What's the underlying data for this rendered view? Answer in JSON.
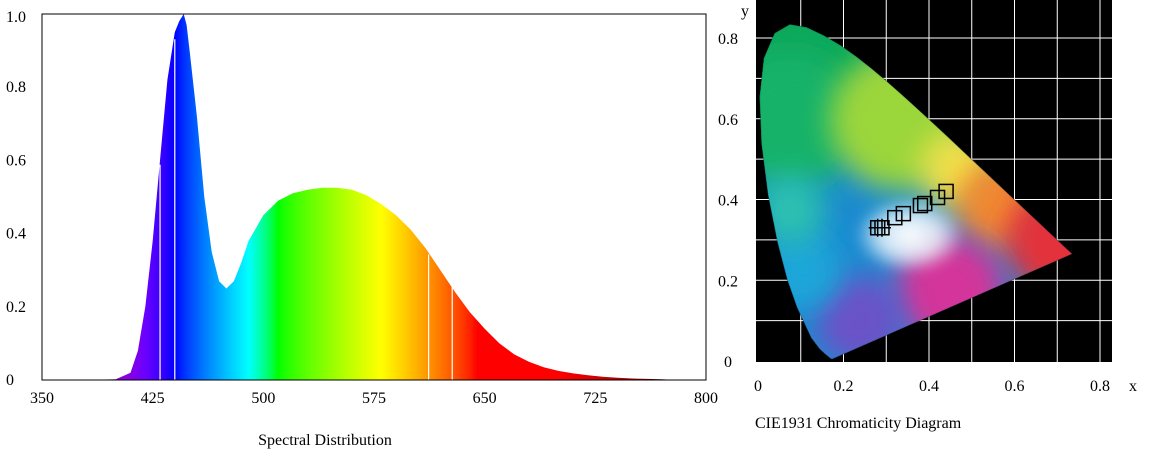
{
  "colors": {
    "background": "#ffffff",
    "cie_background": "#000000",
    "cie_grid": "#ffffff",
    "frame": "#000000"
  },
  "chart_data": [
    {
      "type": "area",
      "title": "Spectral Distribution",
      "xlabel": "",
      "ylabel": "",
      "xlim": [
        350,
        800
      ],
      "ylim": [
        0,
        1.0
      ],
      "x_ticks": [
        "350",
        "425",
        "500",
        "575",
        "650",
        "725",
        "800"
      ],
      "y_ticks": [
        "0",
        "0.2",
        "0.4",
        "0.6",
        "0.8",
        "1.0"
      ],
      "grid": false,
      "fill": "wavelength-colored spectrum",
      "x": [
        380,
        400,
        410,
        415,
        420,
        425,
        430,
        435,
        440,
        443,
        446,
        448,
        450,
        455,
        460,
        465,
        470,
        475,
        480,
        485,
        490,
        500,
        510,
        520,
        530,
        540,
        550,
        560,
        570,
        580,
        590,
        600,
        610,
        620,
        630,
        640,
        650,
        660,
        670,
        680,
        690,
        700,
        710,
        720,
        730,
        740,
        750,
        760,
        770,
        780
      ],
      "y": [
        0.0,
        0.002,
        0.02,
        0.08,
        0.2,
        0.38,
        0.6,
        0.82,
        0.95,
        0.98,
        1.0,
        0.97,
        0.9,
        0.72,
        0.5,
        0.35,
        0.27,
        0.25,
        0.27,
        0.32,
        0.38,
        0.45,
        0.49,
        0.51,
        0.52,
        0.525,
        0.525,
        0.52,
        0.505,
        0.48,
        0.45,
        0.41,
        0.36,
        0.3,
        0.24,
        0.185,
        0.14,
        0.1,
        0.07,
        0.05,
        0.035,
        0.025,
        0.018,
        0.013,
        0.009,
        0.006,
        0.004,
        0.003,
        0.002,
        0.0
      ]
    },
    {
      "type": "scatter",
      "title": "CIE1931 Chromaticity Diagram",
      "xlabel": "x",
      "ylabel": "y",
      "xlim": [
        0,
        0.8
      ],
      "ylim": [
        0,
        0.85
      ],
      "x_ticks": [
        "0",
        "0.2",
        "0.4",
        "0.6",
        "0.8"
      ],
      "y_ticks": [
        "0",
        "0.2",
        "0.4",
        "0.6",
        "0.8"
      ],
      "grid": true,
      "background": "CIE 1931 color gamut",
      "locus_x": [
        0.1741,
        0.1738,
        0.1733,
        0.1726,
        0.1714,
        0.1689,
        0.1644,
        0.1566,
        0.144,
        0.1241,
        0.0913,
        0.0687,
        0.0454,
        0.0235,
        0.0082,
        0.0039,
        0.0139,
        0.0389,
        0.0743,
        0.1142,
        0.1547,
        0.1929,
        0.2296,
        0.2658,
        0.3016,
        0.3373,
        0.3731,
        0.4087,
        0.4441,
        0.4788,
        0.5125,
        0.5448,
        0.5752,
        0.6029,
        0.627,
        0.6482,
        0.6658,
        0.6801,
        0.6915,
        0.7006,
        0.7079,
        0.714,
        0.719,
        0.723,
        0.726,
        0.7347
      ],
      "locus_y": [
        0.005,
        0.0049,
        0.0048,
        0.0048,
        0.0051,
        0.0069,
        0.0109,
        0.0177,
        0.0297,
        0.0578,
        0.1327,
        0.2007,
        0.295,
        0.4127,
        0.5384,
        0.6548,
        0.7502,
        0.812,
        0.8338,
        0.8262,
        0.8059,
        0.7816,
        0.7543,
        0.7243,
        0.6923,
        0.6589,
        0.6245,
        0.5896,
        0.5547,
        0.5202,
        0.4866,
        0.4544,
        0.4242,
        0.3965,
        0.3725,
        0.3514,
        0.334,
        0.3197,
        0.3083,
        0.2993,
        0.292,
        0.2859,
        0.2809,
        0.277,
        0.274,
        0.2653
      ],
      "markers": [
        {
          "shape": "cross-box",
          "x": 0.28,
          "y": 0.33
        },
        {
          "shape": "cross-box",
          "x": 0.29,
          "y": 0.33
        },
        {
          "shape": "box",
          "x": 0.32,
          "y": 0.355
        },
        {
          "shape": "box",
          "x": 0.34,
          "y": 0.365
        },
        {
          "shape": "box",
          "x": 0.38,
          "y": 0.385
        },
        {
          "shape": "box",
          "x": 0.39,
          "y": 0.39
        },
        {
          "shape": "box",
          "x": 0.42,
          "y": 0.405
        },
        {
          "shape": "box",
          "x": 0.44,
          "y": 0.42
        }
      ]
    }
  ]
}
